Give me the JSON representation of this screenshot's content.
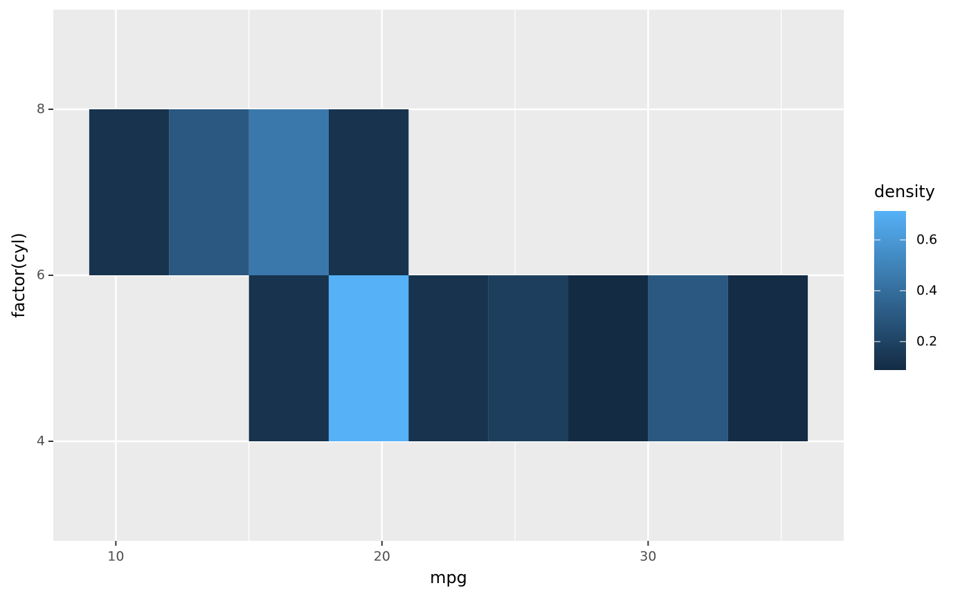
{
  "chart_data": {
    "type": "bin2d",
    "x_label": "mpg",
    "y_label": "factor(cyl)",
    "legend_title": "density",
    "xbins": [
      9,
      12,
      15,
      18,
      21,
      24,
      27,
      30,
      33,
      36
    ],
    "ybins": [
      4,
      6,
      8
    ],
    "values": [
      [
        null,
        null,
        0.125,
        0.714,
        0.125,
        0.18,
        0.088,
        0.3,
        0.095
      ],
      [
        0.125,
        0.3,
        0.45,
        0.125,
        null,
        null,
        null,
        null,
        null
      ]
    ],
    "xlim": [
      7.65,
      37.35
    ],
    "ylim": [
      2.8,
      9.2
    ],
    "xticks": [
      10,
      20,
      30
    ],
    "x_minor_ticks": [
      15,
      25,
      35
    ],
    "yticks": [
      4,
      6,
      8
    ],
    "fill_lim": [
      0.088,
      0.714
    ],
    "fill_ticks": [
      0.2,
      0.4,
      0.6
    ],
    "low_color": "#132B43",
    "high_color": "#56B1F7",
    "panel_color": "#EBEBEB",
    "grid": true
  }
}
